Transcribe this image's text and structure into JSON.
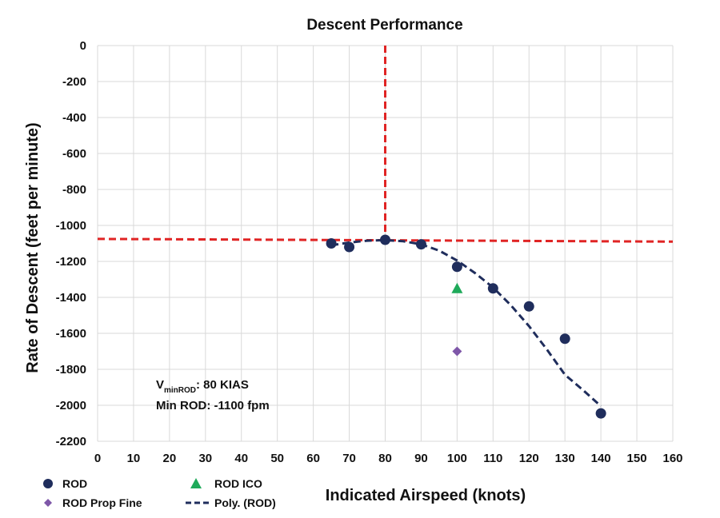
{
  "chart_data": {
    "type": "scatter",
    "title": "Descent Performance",
    "xlabel": "Indicated Airspeed (knots)",
    "ylabel": "Rate of Descent (feet per minute)",
    "xlim": [
      0,
      160
    ],
    "ylim": [
      -2200,
      0
    ],
    "x_ticks": [
      "0",
      "10",
      "20",
      "30",
      "40",
      "50",
      "60",
      "70",
      "80",
      "90",
      "100",
      "110",
      "120",
      "130",
      "140",
      "150",
      "160"
    ],
    "y_ticks": [
      "0",
      "-200",
      "-400",
      "-600",
      "-800",
      "-1000",
      "-1200",
      "-1400",
      "-1600",
      "-1800",
      "-2000",
      "-2200"
    ],
    "grid": true,
    "legend_position": "bottom-left",
    "series": [
      {
        "name": "ROD",
        "marker": "circle",
        "color": "#1F2D5C",
        "x": [
          65,
          70,
          80,
          90,
          100,
          110,
          120,
          130,
          140
        ],
        "y": [
          -1100,
          -1120,
          -1080,
          -1105,
          -1230,
          -1350,
          -1450,
          -1630,
          -2045
        ]
      },
      {
        "name": "ROD ICO",
        "marker": "triangle",
        "color": "#1FAA5A",
        "x": [
          100
        ],
        "y": [
          -1350
        ]
      },
      {
        "name": "ROD Prop Fine",
        "marker": "diamond",
        "color": "#7E57A8",
        "x": [
          100
        ],
        "y": [
          -1700
        ]
      },
      {
        "name": "Poly. (ROD)",
        "style": "dashed",
        "color": "#1F2D5C",
        "x": [
          65,
          70,
          75,
          80,
          85,
          90,
          95,
          100,
          105,
          110,
          115,
          120,
          125,
          130,
          135,
          140
        ],
        "y": [
          -1110,
          -1095,
          -1085,
          -1082,
          -1088,
          -1105,
          -1140,
          -1195,
          -1265,
          -1345,
          -1445,
          -1560,
          -1690,
          -1830,
          -1915,
          -2005
        ]
      }
    ],
    "reference_lines": [
      {
        "orientation": "vertical",
        "x": 80,
        "color": "#E02424",
        "style": "dashed"
      },
      {
        "orientation": "horizontal",
        "x": [
          0,
          160
        ],
        "y": [
          -1075,
          -1090
        ],
        "color": "#E02424",
        "style": "dashed"
      }
    ],
    "annotation": {
      "line1_main": "V",
      "line1_sub": "minROD",
      "line1_rest": ": 80 KIAS",
      "line2": "Min ROD: -1100 fpm"
    }
  }
}
